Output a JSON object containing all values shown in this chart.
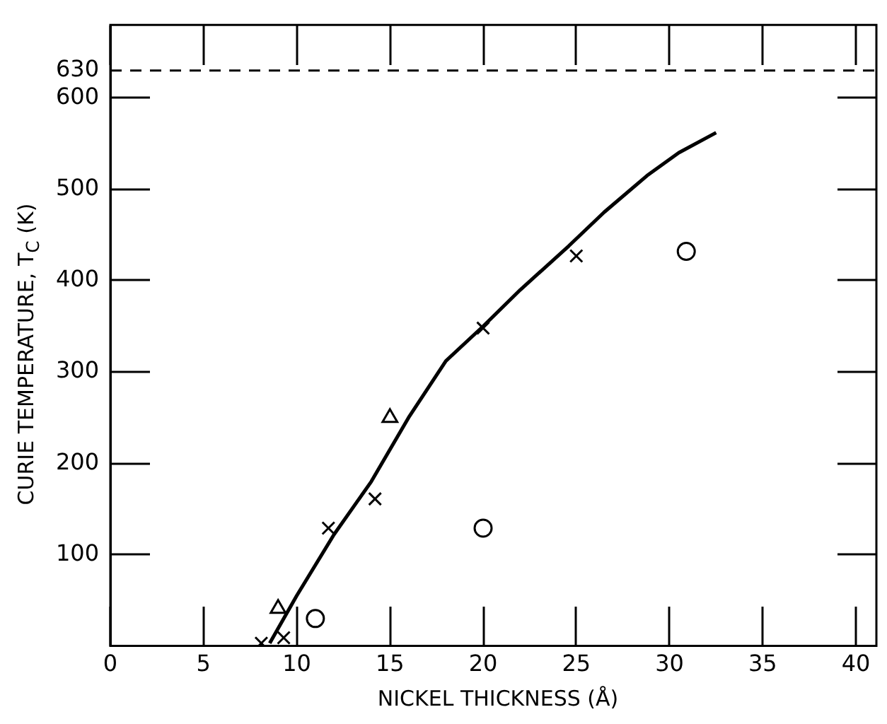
{
  "chart_data": {
    "type": "scatter",
    "xlabel": "NICKEL THICKNESS (Å)",
    "ylabel": "CURIE TEMPERATURE, T$_{C}$ (K)",
    "xlim": [
      0,
      41.1
    ],
    "xticks": [
      0,
      5,
      10,
      15,
      20,
      25,
      30,
      35,
      40
    ],
    "ylim": [
      0,
      680
    ],
    "yticks": [
      100,
      200,
      300,
      400,
      500,
      600
    ],
    "grid": false,
    "legend": false,
    "ref_lines": [
      {
        "axis": "y",
        "value": 630,
        "label": "630",
        "line_style": "dashed",
        "color": "#000000"
      }
    ],
    "series": [
      {
        "marker": "cross",
        "color": "#000000",
        "x": [
          8.1,
          9.3,
          11.7,
          14.2,
          20.0,
          25.0
        ],
        "values": [
          3,
          9,
          129,
          161,
          348,
          427
        ]
      },
      {
        "marker": "triangle",
        "color": "#000000",
        "x": [
          9.0,
          15.0
        ],
        "values": [
          41,
          250
        ]
      },
      {
        "marker": "circle",
        "color": "#000000",
        "x": [
          11.0,
          20.0,
          30.9
        ],
        "values": [
          30,
          129,
          432
        ]
      },
      {
        "type": "line",
        "marker": "none",
        "line_style": "solid",
        "color": "#000000",
        "x": [
          8.55,
          10,
          12,
          14,
          16,
          18,
          20,
          22,
          24.6,
          26.5,
          28.8,
          30.5,
          32.5
        ],
        "values": [
          3,
          55,
          122,
          180,
          250,
          312,
          350,
          390,
          438,
          475,
          515,
          540,
          562
        ]
      }
    ]
  }
}
